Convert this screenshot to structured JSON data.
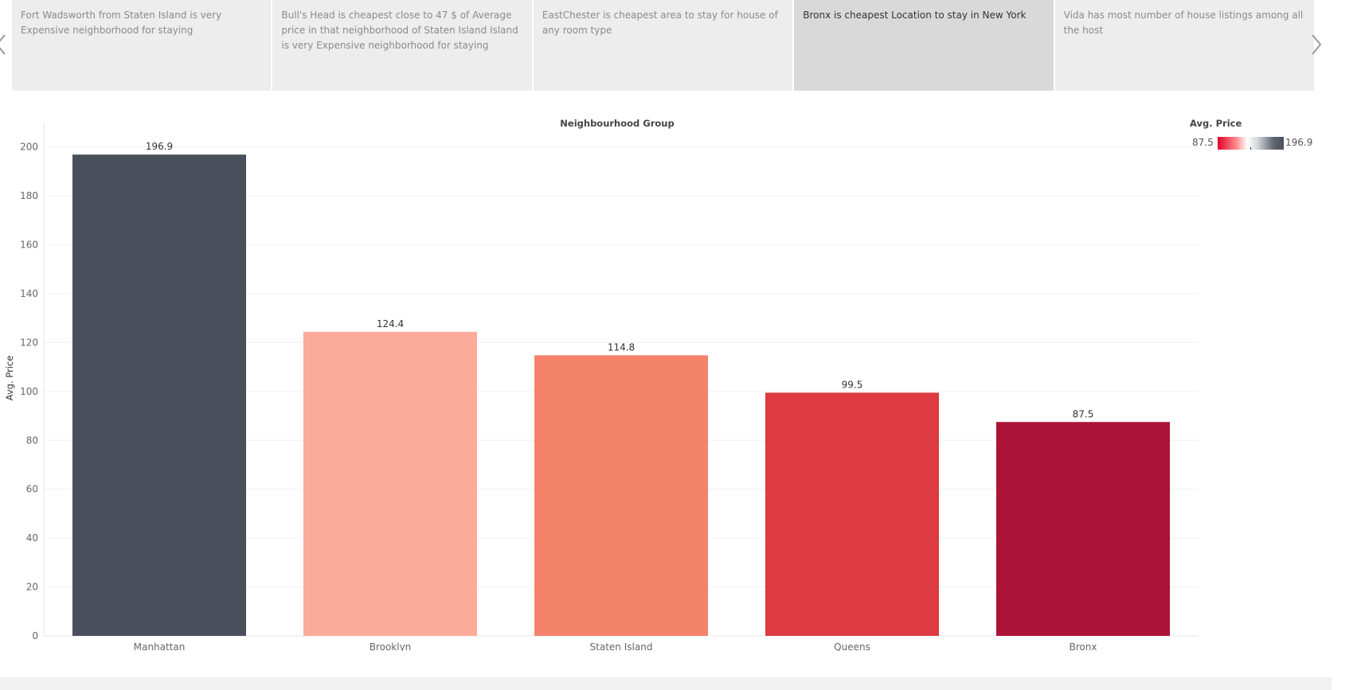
{
  "story": {
    "points": [
      {
        "text": "Fort Wadsworth from Staten Island is very Expensive neighborhood for staying",
        "active": false
      },
      {
        "text": "Bull's Head is cheapest close to 47 $ of Average price in that neighborhood of Staten Island  Island is very Expensive neighborhood for staying",
        "active": false
      },
      {
        "text": "EastChester is cheapest area to stay for house of any room type",
        "active": false
      },
      {
        "text": "Bronx is cheapest Location to stay in New York",
        "active": true
      },
      {
        "text": "Vida has most number of house listings among all the host",
        "active": false
      }
    ]
  },
  "legend": {
    "title": "Avg. Price",
    "min_label": "87.5",
    "max_label": "196.9"
  },
  "chart_data": {
    "type": "bar",
    "header": "Neighbourhood Group",
    "ylabel": "Avg. Price",
    "categories": [
      "Manhattan",
      "Brooklyn",
      "Staten Island",
      "Queens",
      "Bronx"
    ],
    "values": [
      196.9,
      124.4,
      114.8,
      99.5,
      87.5
    ],
    "value_labels": [
      "196.9",
      "124.4",
      "114.8",
      "99.5",
      "87.5"
    ],
    "colors": [
      "#4a505b",
      "#fcab9b",
      "#f5826b",
      "#dd3a42",
      "#ac1337"
    ],
    "ylim": [
      0,
      210
    ],
    "yticks": [
      0,
      20,
      40,
      60,
      80,
      100,
      120,
      140,
      160,
      180,
      200
    ],
    "grid": true
  }
}
